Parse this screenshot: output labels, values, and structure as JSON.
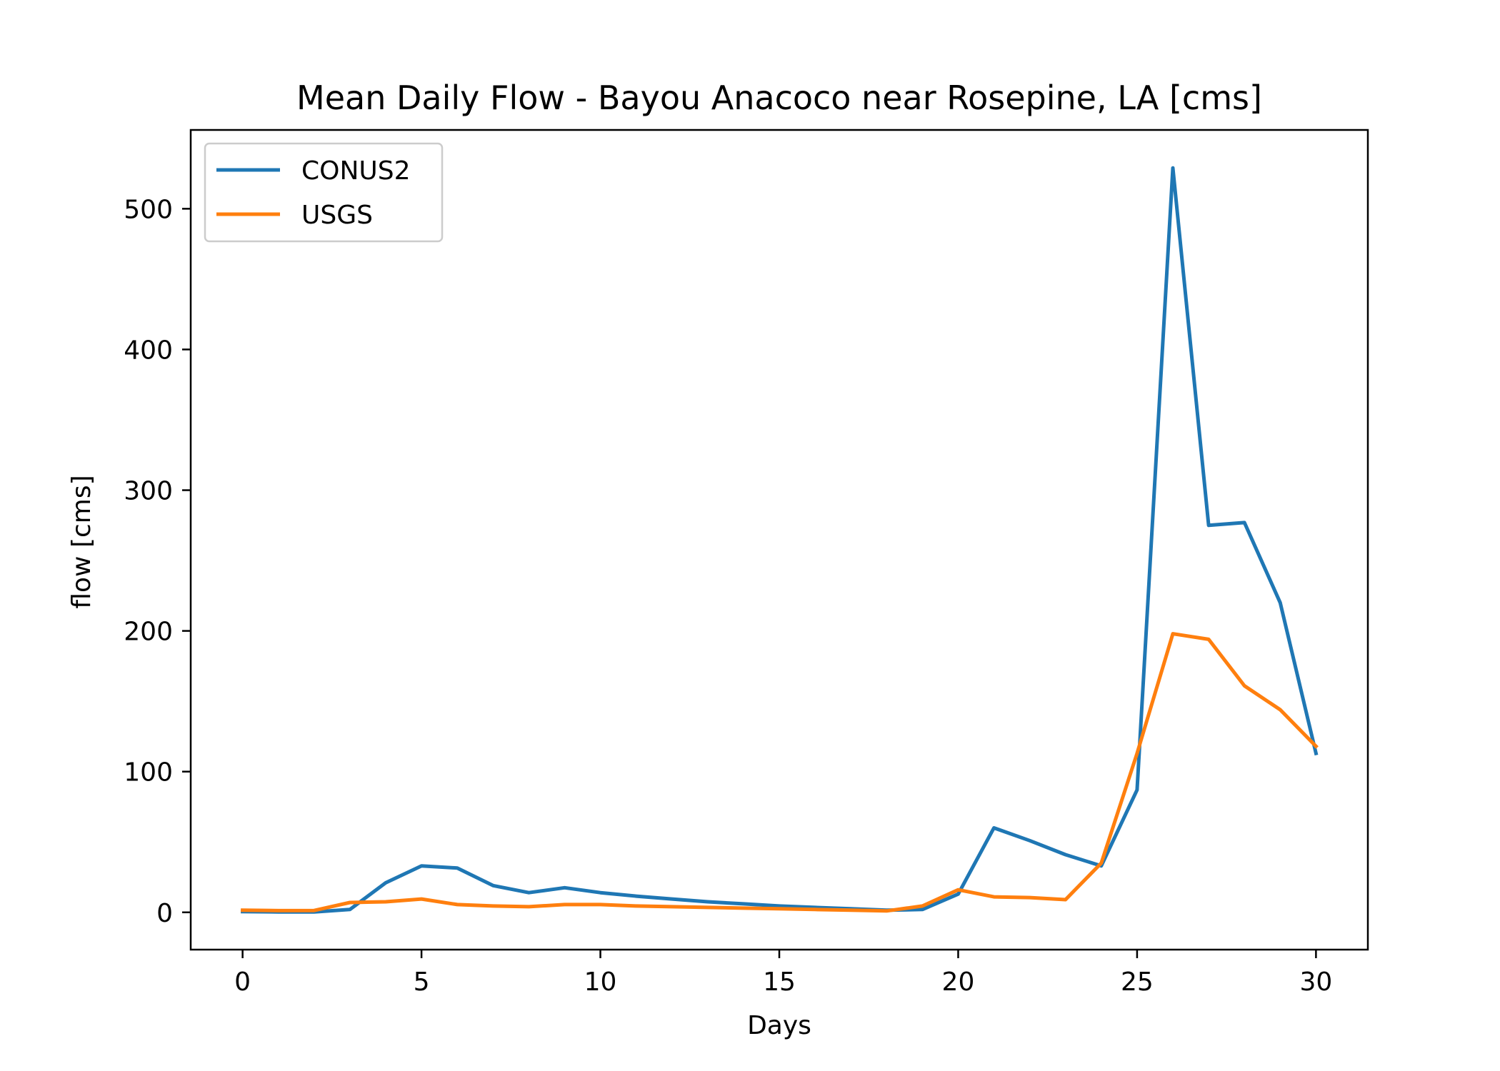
{
  "chart_data": {
    "type": "line",
    "title": "Mean Daily Flow - Bayou Anacoco near Rosepine, LA [cms]",
    "xlabel": "Days",
    "ylabel": "flow [cms]",
    "xlim": [
      -1.45,
      31.45
    ],
    "ylim": [
      -26.5,
      556
    ],
    "xticks": [
      0,
      5,
      10,
      15,
      20,
      25,
      30
    ],
    "yticks": [
      0,
      100,
      200,
      300,
      400,
      500
    ],
    "grid": false,
    "legend_position": "upper left",
    "x": [
      0,
      1,
      2,
      3,
      4,
      5,
      6,
      7,
      8,
      9,
      10,
      11,
      12,
      13,
      14,
      15,
      16,
      17,
      18,
      19,
      20,
      21,
      22,
      23,
      24,
      25,
      26,
      27,
      28,
      29,
      30
    ],
    "series": [
      {
        "name": "CONUS2",
        "color": "#1f77b4",
        "values": [
          0.5,
          0.3,
          0.3,
          2,
          21,
          33,
          31.5,
          19,
          14,
          17.5,
          14,
          11.5,
          9.5,
          7.5,
          6,
          4.5,
          3.5,
          2.5,
          1.5,
          2,
          13,
          60,
          51,
          41,
          33,
          87,
          529,
          275,
          277,
          220,
          113
        ]
      },
      {
        "name": "USGS",
        "color": "#ff7f0e",
        "values": [
          1.5,
          1.2,
          1.3,
          7,
          7.5,
          9.5,
          5.5,
          4.5,
          4,
          5.5,
          5.5,
          4.5,
          4,
          3.5,
          3,
          2.5,
          2,
          1.5,
          1,
          4.5,
          16,
          11,
          10.5,
          9,
          35,
          113,
          198,
          194,
          161,
          144,
          118
        ]
      }
    ]
  }
}
